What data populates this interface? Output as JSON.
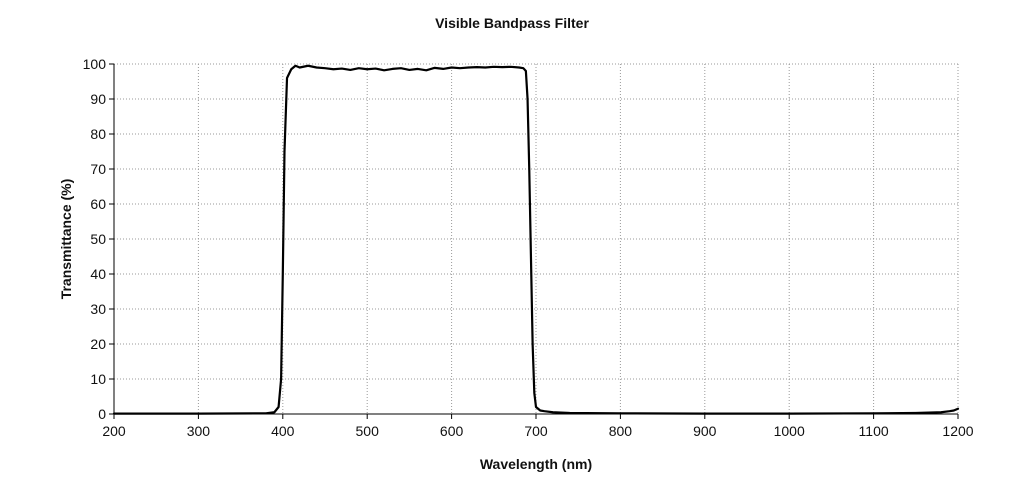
{
  "chart_data": {
    "type": "line",
    "title": "Visible Bandpass Filter",
    "xlabel": "Wavelength (nm)",
    "ylabel": "Transmittance (%)",
    "xlim": [
      200,
      1200
    ],
    "ylim": [
      0,
      100
    ],
    "xticks": [
      200,
      300,
      400,
      500,
      600,
      700,
      800,
      900,
      1000,
      1100,
      1200
    ],
    "yticks": [
      0,
      10,
      20,
      30,
      40,
      50,
      60,
      70,
      80,
      90,
      100
    ],
    "grid": true,
    "legend": "none",
    "line_color": "#000000",
    "series": [
      {
        "x": [
          200,
          300,
          380,
          390,
          395,
          398,
          400,
          402,
          405,
          410,
          415,
          420,
          430,
          440,
          450,
          460,
          470,
          480,
          490,
          500,
          510,
          520,
          530,
          540,
          550,
          560,
          570,
          580,
          590,
          600,
          610,
          620,
          630,
          640,
          650,
          660,
          670,
          680,
          685,
          688,
          690,
          692,
          694,
          696,
          698,
          700,
          705,
          710,
          720,
          740,
          800,
          900,
          1000,
          1100,
          1150,
          1180,
          1190,
          1195,
          1200
        ],
        "y": [
          0.1,
          0.1,
          0.2,
          0.5,
          2,
          10,
          40,
          75,
          96,
          98.5,
          99.5,
          99,
          99.5,
          99,
          98.8,
          98.5,
          98.7,
          98.3,
          98.8,
          98.5,
          98.7,
          98.2,
          98.6,
          98.8,
          98.3,
          98.6,
          98.2,
          98.9,
          98.6,
          99,
          98.8,
          99,
          99.1,
          99,
          99.2,
          99.1,
          99.2,
          99,
          98.8,
          98,
          90,
          70,
          45,
          20,
          6,
          2,
          1,
          0.8,
          0.5,
          0.3,
          0.2,
          0.1,
          0.1,
          0.2,
          0.3,
          0.5,
          0.8,
          1,
          1.5
        ]
      }
    ]
  }
}
